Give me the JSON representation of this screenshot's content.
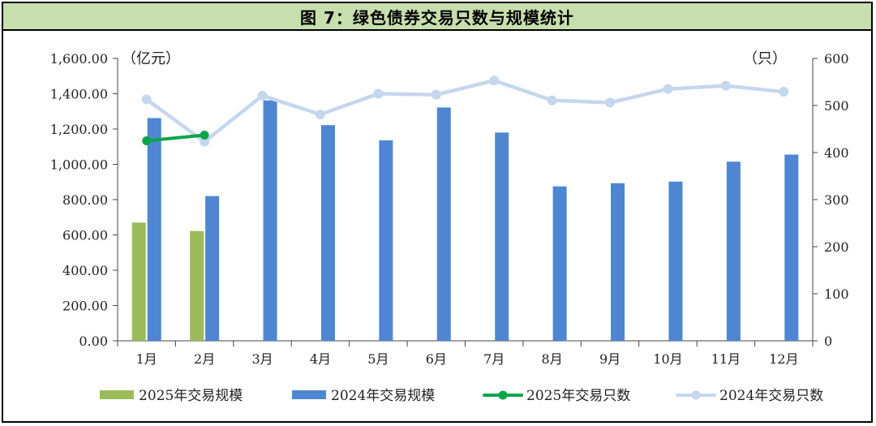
{
  "title": "图 7：绿色债券交易只数与规模统计",
  "colors": {
    "bar_2025": "#9bbb59",
    "bar_2024": "#4f86d1",
    "line_2025": "#0aa54a",
    "line_2024": "#c5d7ee",
    "title_bg": "#c7dfae"
  },
  "chart_data": {
    "type": "bar",
    "categories": [
      "1月",
      "2月",
      "3月",
      "4月",
      "5月",
      "6月",
      "7月",
      "8月",
      "9月",
      "10月",
      "11月",
      "12月"
    ],
    "series": [
      {
        "name": "2025年交易规模",
        "kind": "bar",
        "axis": "left",
        "values": [
          670,
          622,
          null,
          null,
          null,
          null,
          null,
          null,
          null,
          null,
          null,
          null
        ]
      },
      {
        "name": "2024年交易规模",
        "kind": "bar",
        "axis": "left",
        "values": [
          1262,
          820,
          1362,
          1222,
          1136,
          1322,
          1180,
          875,
          893,
          902,
          1015,
          1055
        ]
      },
      {
        "name": "2025年交易只数",
        "kind": "line",
        "axis": "right",
        "values": [
          425,
          437,
          null,
          null,
          null,
          null,
          null,
          null,
          null,
          null,
          null,
          null
        ]
      },
      {
        "name": "2024年交易只数",
        "kind": "line",
        "axis": "right",
        "values": [
          513,
          423,
          521,
          481,
          525,
          523,
          553,
          511,
          506,
          535,
          542,
          529
        ]
      }
    ],
    "left_axis": {
      "unit": "（亿元）",
      "ylim": [
        0,
        1600
      ],
      "ticks": [
        "0.00",
        "200.00",
        "400.00",
        "600.00",
        "800.00",
        "1,000.00",
        "1,200.00",
        "1,400.00",
        "1,600.00"
      ]
    },
    "right_axis": {
      "unit": "（只）",
      "ylim": [
        0,
        600
      ],
      "ticks": [
        "0",
        "100",
        "200",
        "300",
        "400",
        "500",
        "600"
      ]
    },
    "grid": false,
    "legend_position": "bottom"
  }
}
